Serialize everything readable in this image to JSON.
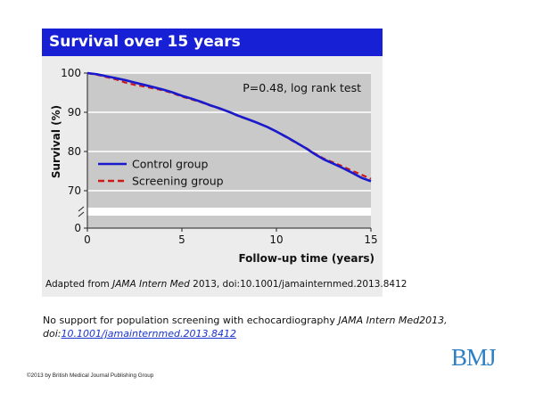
{
  "header": {
    "title": "Survival over 15 years"
  },
  "chart_data": {
    "type": "line",
    "title": "Survival over 15 years",
    "xlabel": "Follow-up time (years)",
    "ylabel": "Survival (%)",
    "xlim": [
      0,
      15
    ],
    "ylim": [
      0,
      100
    ],
    "x_ticks": [
      0,
      5,
      10,
      15
    ],
    "y_ticks": [
      0,
      70,
      80,
      90,
      100
    ],
    "y_axis_break": true,
    "grid": true,
    "legend": "left-middle",
    "annotation": "P=0.48, log rank test",
    "series": [
      {
        "name": "Control group",
        "color": "#1a1acc",
        "style": "solid",
        "x": [
          0,
          0.5,
          1,
          1.5,
          2,
          2.5,
          3,
          3.5,
          4,
          4.5,
          5,
          5.5,
          6,
          6.5,
          7,
          7.5,
          8,
          8.5,
          9,
          9.5,
          10,
          10.5,
          11,
          11.5,
          12,
          12.5,
          13,
          13.5,
          14,
          14.5,
          15
        ],
        "values": [
          100,
          99.7,
          99.2,
          98.7,
          98.2,
          97.6,
          97.0,
          96.4,
          95.8,
          95.1,
          94.2,
          93.5,
          92.7,
          91.8,
          91.0,
          90.1,
          89.1,
          88.2,
          87.3,
          86.3,
          85.1,
          83.8,
          82.4,
          81.0,
          79.4,
          78.0,
          76.9,
          75.8,
          74.6,
          73.3,
          72.4
        ]
      },
      {
        "name": "Screening group",
        "color": "#cc1a1a",
        "style": "dashed",
        "x": [
          0,
          0.5,
          1,
          1.5,
          2,
          2.5,
          3,
          3.5,
          4,
          4.5,
          5,
          5.5,
          6,
          6.5,
          7,
          7.5,
          8,
          8.5,
          9,
          9.5,
          10,
          10.5,
          11,
          11.5,
          12,
          12.5,
          13,
          13.5,
          14,
          14.5,
          15
        ],
        "values": [
          100,
          99.6,
          99.0,
          98.4,
          97.6,
          97.0,
          96.6,
          96.1,
          95.6,
          94.9,
          94.0,
          93.3,
          92.6,
          91.7,
          90.9,
          90.1,
          89.0,
          88.2,
          87.3,
          86.3,
          85.1,
          83.7,
          82.3,
          81.1,
          79.6,
          78.2,
          77.2,
          76.2,
          75.1,
          74.1,
          73.0
        ]
      }
    ]
  },
  "source_note": {
    "prefix": "Adapted from ",
    "journal": "JAMA Intern Med",
    "suffix": " 2013, doi:10.1001/jamainternmed.2013.8412"
  },
  "caption": {
    "text": "No support for population screening with echocardiography ",
    "journal_ref": "JAMA Intern Med2013,",
    "doi_prefix": "doi:",
    "link": "10.1001/jamainternmed.2013.8412"
  },
  "copyright": "©2013 by British Medical Journal Publishing Group",
  "logo": "BMJ"
}
